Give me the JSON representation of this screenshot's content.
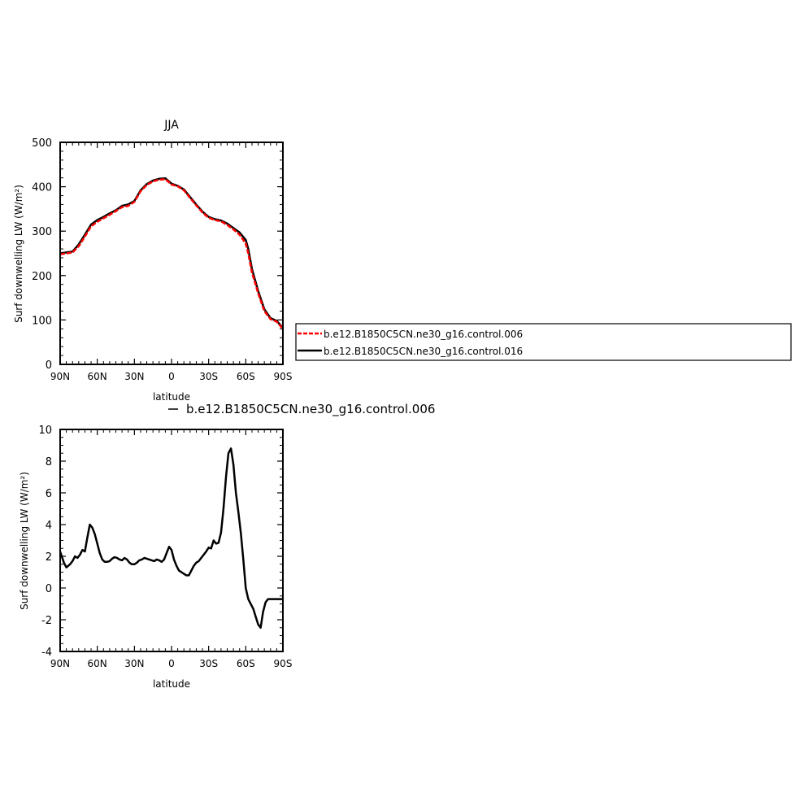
{
  "chart_data": [
    {
      "type": "line",
      "title": "JJA",
      "xlabel": "latitude",
      "ylabel": "Surf downwelling LW (W/m²)",
      "ylim": [
        0,
        500
      ],
      "xlim": [
        90,
        -90
      ],
      "xticks": [
        {
          "value": 90,
          "label": "90N"
        },
        {
          "value": 60,
          "label": "60N"
        },
        {
          "value": 30,
          "label": "30N"
        },
        {
          "value": 0,
          "label": "0"
        },
        {
          "value": -30,
          "label": "30S"
        },
        {
          "value": -60,
          "label": "60S"
        },
        {
          "value": -90,
          "label": "90S"
        }
      ],
      "yticks": [
        0,
        100,
        200,
        300,
        400,
        500
      ],
      "legend": "right",
      "series": [
        {
          "name": "b.e12.B1850C5CN.ne30_g16.control.006",
          "color": "#ff0000",
          "dash": true,
          "x": [
            90,
            85,
            80,
            75,
            70,
            65,
            60,
            55,
            50,
            45,
            40,
            35,
            30,
            25,
            20,
            15,
            10,
            5,
            0,
            -5,
            -10,
            -15,
            -20,
            -25,
            -30,
            -35,
            -40,
            -45,
            -50,
            -55,
            -60,
            -62,
            -65,
            -70,
            -75,
            -80,
            -85,
            -90
          ],
          "y": [
            248,
            250,
            252,
            266,
            288,
            311,
            321,
            329,
            337,
            345,
            354,
            357,
            366,
            390,
            404,
            412,
            416,
            417,
            405,
            401,
            392,
            375,
            358,
            342,
            330,
            325,
            322,
            314,
            304,
            292,
            272,
            250,
            207,
            160,
            120,
            102,
            96,
            80
          ]
        },
        {
          "name": "b.e12.B1850C5CN.ne30_g16.control.016",
          "color": "#000000",
          "dash": false,
          "x": [
            90,
            85,
            80,
            75,
            70,
            65,
            60,
            55,
            50,
            45,
            40,
            35,
            30,
            25,
            20,
            15,
            10,
            5,
            0,
            -5,
            -10,
            -15,
            -20,
            -25,
            -30,
            -35,
            -40,
            -45,
            -50,
            -55,
            -60,
            -62,
            -65,
            -70,
            -75,
            -80,
            -85,
            -90
          ],
          "y": [
            250,
            252,
            254,
            270,
            292,
            315,
            325,
            332,
            340,
            347,
            357,
            360,
            368,
            392,
            406,
            414,
            418,
            419,
            407,
            402,
            394,
            377,
            360,
            344,
            332,
            327,
            324,
            317,
            307,
            297,
            280,
            260,
            215,
            165,
            124,
            104,
            98,
            82
          ]
        }
      ]
    },
    {
      "type": "line",
      "title": "",
      "xlabel": "latitude",
      "ylabel": "Surf downwelling LW (W/m²)",
      "ylim": [
        -4,
        10
      ],
      "xlim": [
        90,
        -90
      ],
      "xticks": [
        {
          "value": 90,
          "label": "90N"
        },
        {
          "value": 60,
          "label": "60N"
        },
        {
          "value": 30,
          "label": "30N"
        },
        {
          "value": 0,
          "label": "0"
        },
        {
          "value": -30,
          "label": "30S"
        },
        {
          "value": -60,
          "label": "60S"
        },
        {
          "value": -90,
          "label": "90S"
        }
      ],
      "yticks": [
        -4,
        -2,
        0,
        2,
        4,
        6,
        8,
        10
      ],
      "legend": "top",
      "series": [
        {
          "name": "b.e12.B1850C5CN.ne30_g16.control.006",
          "color": "#000000",
          "dash": false,
          "x": [
            90,
            87,
            85,
            82,
            80,
            78,
            76,
            74,
            72,
            70,
            68,
            66,
            64,
            62,
            60,
            58,
            56,
            54,
            52,
            50,
            48,
            46,
            44,
            42,
            40,
            38,
            36,
            34,
            32,
            30,
            28,
            26,
            24,
            22,
            20,
            18,
            16,
            14,
            12,
            10,
            8,
            6,
            4,
            2,
            0,
            -2,
            -4,
            -6,
            -8,
            -10,
            -12,
            -14,
            -16,
            -18,
            -20,
            -22,
            -24,
            -26,
            -28,
            -30,
            -32,
            -34,
            -36,
            -38,
            -40,
            -42,
            -44,
            -46,
            -48,
            -50,
            -52,
            -54,
            -56,
            -58,
            -60,
            -62,
            -64,
            -66,
            -68,
            -70,
            -72,
            -74,
            -76,
            -78,
            -80,
            -82,
            -84,
            -86,
            -88,
            -90
          ],
          "y": [
            2.3,
            1.6,
            1.3,
            1.5,
            1.7,
            2.0,
            1.9,
            2.1,
            2.4,
            2.3,
            3.2,
            4.0,
            3.8,
            3.4,
            2.8,
            2.2,
            1.8,
            1.65,
            1.65,
            1.7,
            1.85,
            1.95,
            1.9,
            1.8,
            1.75,
            1.9,
            1.8,
            1.6,
            1.5,
            1.5,
            1.6,
            1.75,
            1.8,
            1.9,
            1.85,
            1.8,
            1.75,
            1.7,
            1.8,
            1.75,
            1.65,
            1.8,
            2.2,
            2.6,
            2.4,
            1.8,
            1.4,
            1.1,
            1.0,
            0.9,
            0.8,
            0.8,
            1.1,
            1.4,
            1.6,
            1.7,
            1.9,
            2.1,
            2.3,
            2.55,
            2.5,
            3.0,
            2.8,
            2.85,
            3.5,
            5.0,
            7.0,
            8.5,
            8.8,
            7.8,
            6.0,
            4.8,
            3.5,
            1.8,
            0.0,
            -0.7,
            -1.0,
            -1.3,
            -1.8,
            -2.3,
            -2.5,
            -1.5,
            -0.9,
            -0.7,
            -0.7,
            -0.7,
            -0.7,
            -0.7,
            -0.7,
            -0.7
          ]
        }
      ]
    }
  ]
}
